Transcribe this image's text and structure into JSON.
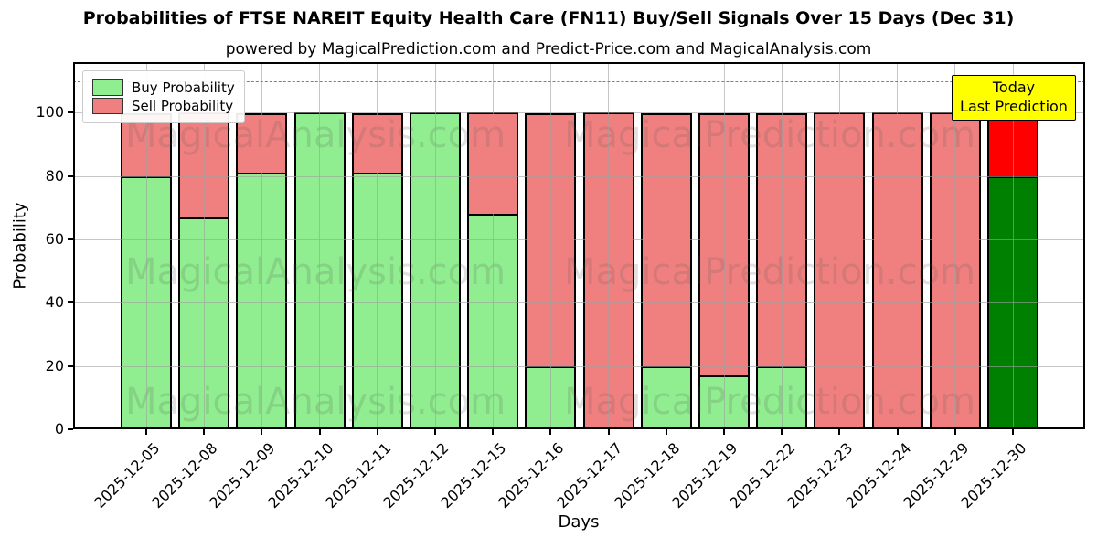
{
  "title": "Probabilities of FTSE NAREIT Equity Health Care (FN11) Buy/Sell Signals Over 15 Days (Dec 31)",
  "subtitle": "powered by MagicalPrediction.com and Predict-Price.com and MagicalAnalysis.com",
  "watermarks": {
    "left": "MagicalAnalysis.com",
    "right": "MagicalPrediction.com"
  },
  "legend": [
    {
      "label": "Buy Probability",
      "color": "#90EE90"
    },
    {
      "label": "Sell Probability",
      "color": "#F08080"
    }
  ],
  "annotation": {
    "line1": "Today",
    "line2": "Last Prediction",
    "bg": "#FFFF00"
  },
  "chart_data": {
    "type": "bar",
    "stacked": true,
    "title": "Probabilities of FTSE NAREIT Equity Health Care (FN11) Buy/Sell Signals Over 15 Days (Dec 31)",
    "xlabel": "Days",
    "ylabel": "Probability",
    "categories": [
      "2025-12-05",
      "2025-12-08",
      "2025-12-09",
      "2025-12-10",
      "2025-12-11",
      "2025-12-12",
      "2025-12-15",
      "2025-12-16",
      "2025-12-17",
      "2025-12-18",
      "2025-12-19",
      "2025-12-22",
      "2025-12-23",
      "2025-12-24",
      "2025-12-29",
      "2025-12-30"
    ],
    "series": [
      {
        "name": "Buy Probability",
        "color": "#90EE90",
        "values": [
          80,
          67,
          81,
          100,
          81,
          100,
          68,
          20,
          0,
          20,
          17,
          20,
          0,
          0,
          0,
          80
        ]
      },
      {
        "name": "Sell Probability",
        "color": "#F08080",
        "values": [
          20,
          33,
          19,
          0,
          19,
          0,
          32,
          80,
          100,
          80,
          83,
          80,
          100,
          100,
          100,
          20
        ]
      }
    ],
    "last_bar_colors": {
      "buy": "#008000",
      "sell": "#FF0000"
    },
    "bar_edge_color": "#000000",
    "yticks": [
      0,
      20,
      40,
      60,
      80,
      100
    ],
    "ylim": [
      0,
      116
    ],
    "dashed_line_y": 110,
    "grid": true,
    "legend_position": "upper left"
  }
}
